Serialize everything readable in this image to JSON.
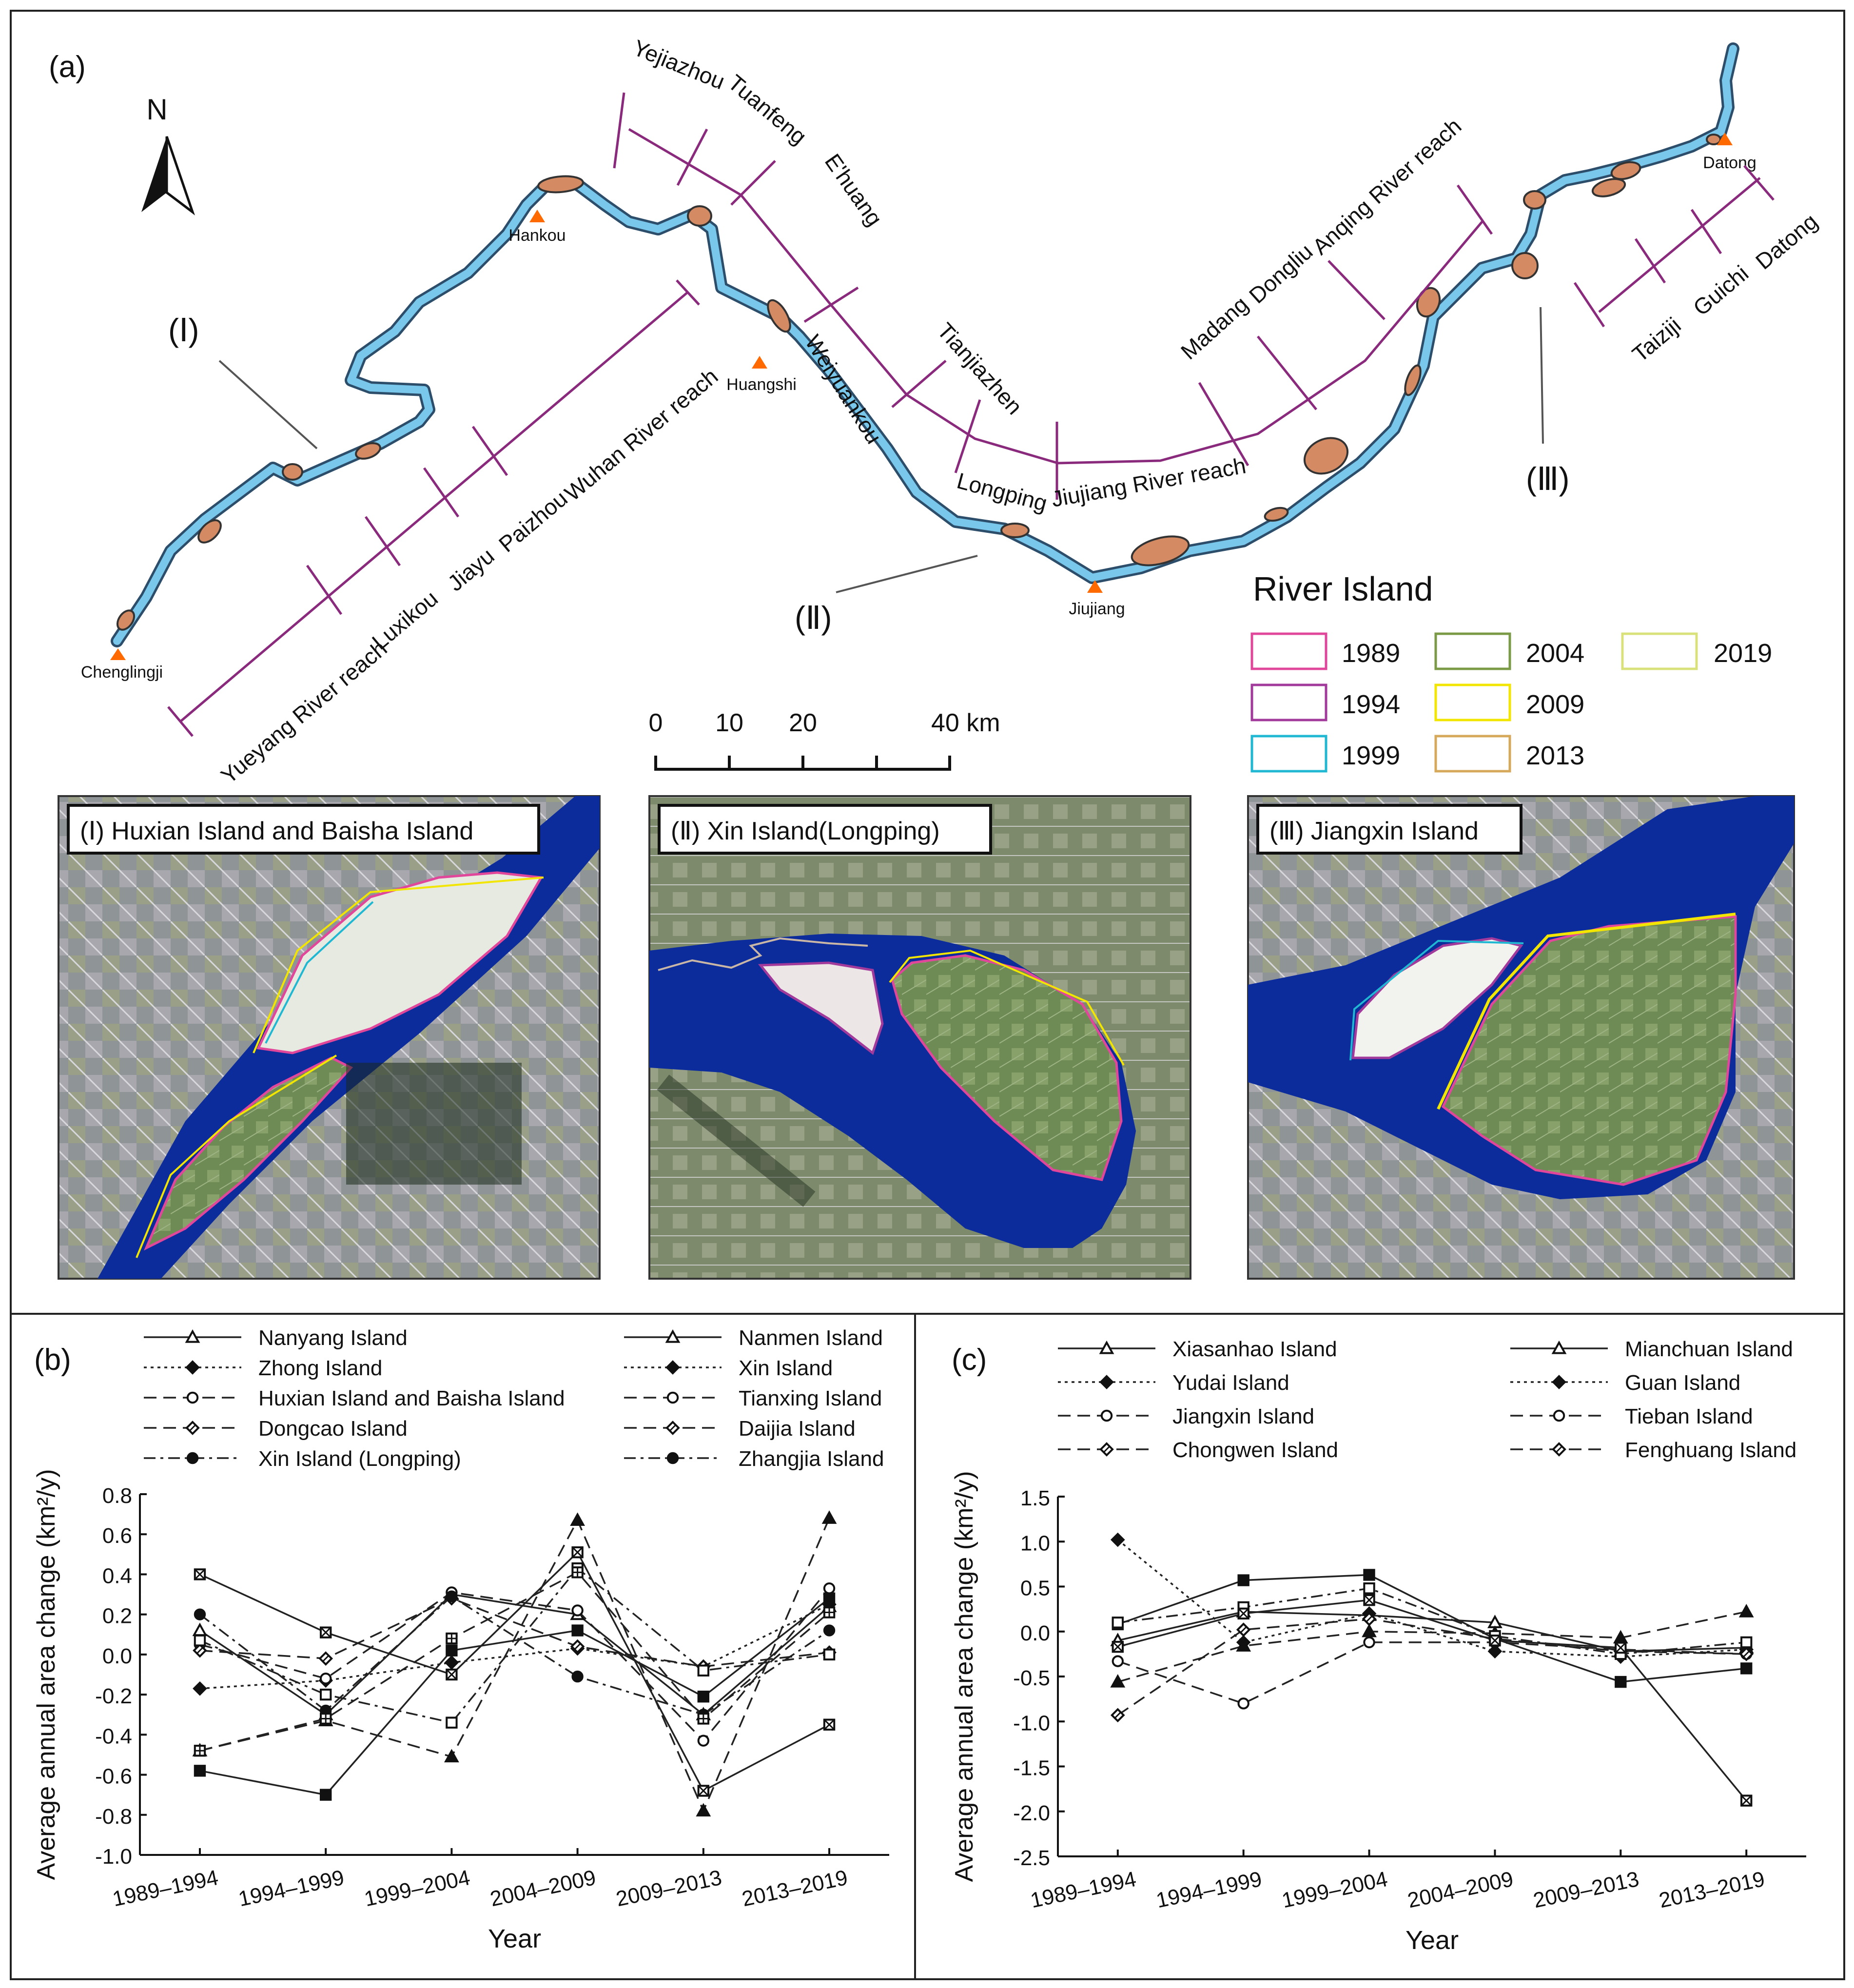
{
  "panel_a": {
    "label": "(a)",
    "north": "N",
    "cities": [
      "Chenglingji",
      "Hankou",
      "Huangshi",
      "Jiujiang",
      "Datong"
    ],
    "reaches": [
      "Yueyang River reach",
      "Luxikou",
      "Jiayu",
      "Paizhou",
      "Wuhan River reach",
      "Yejiazhou",
      "Tuanfeng",
      "E'huang",
      "Weiyuankou",
      "Tianjiazhen",
      "Longping",
      "Jiujiang River reach",
      "Madang",
      "Dongliu",
      "Anqing River reach",
      "Taiziji",
      "Guichi",
      "Datong"
    ],
    "markers": [
      "(Ⅰ)",
      "(Ⅱ)",
      "(Ⅲ)"
    ],
    "legend_title": "River Island",
    "legend": [
      {
        "year": "1989",
        "color": "#e0479a"
      },
      {
        "year": "1994",
        "color": "#a23a9c"
      },
      {
        "year": "1999",
        "color": "#1fb7d1"
      },
      {
        "year": "2004",
        "color": "#7a9a45"
      },
      {
        "year": "2009",
        "color": "#f2e600"
      },
      {
        "year": "2013",
        "color": "#d6a85a"
      },
      {
        "year": "2019",
        "color": "#d9e27a"
      }
    ],
    "scale_ticks": [
      "0",
      "10",
      "20",
      "40 km"
    ],
    "insets": [
      "(Ⅰ) Huxian Island and Baisha Island",
      "(Ⅱ) Xin Island(Longping)",
      "(Ⅲ) Jiangxin Island"
    ],
    "colors": {
      "river": "#79c7ea",
      "river_edge": "#2d4e6b",
      "island": "#d48a62",
      "reach_line": "#8a2a7c",
      "city": "#ff6a00",
      "water": "#0c2c9c"
    }
  },
  "chart_data": [
    {
      "panel": "(b)",
      "type": "line",
      "categories": [
        "1989–1994",
        "1994–1999",
        "1999–2004",
        "2004–2009",
        "2009–2013",
        "2013–2019"
      ],
      "xlabel": "Year",
      "ylabel": "Average annual area change (km²/y)",
      "ylim": [
        -1.0,
        0.8
      ],
      "yticks": [
        "0.8",
        "0.6",
        "0.4",
        "0.2",
        "0.0",
        "-0.2",
        "-0.4",
        "-0.6",
        "-0.8",
        "-1.0"
      ],
      "legend_items": [
        {
          "name": "Nanyang Island",
          "marker": "tri-open",
          "dash": "solid"
        },
        {
          "name": "Zhong Island",
          "marker": "diamond-filled",
          "dash": "dotted"
        },
        {
          "name": "Huxian Island and Baisha Island",
          "marker": "circle-open",
          "dash": "longdash"
        },
        {
          "name": "Dongcao Island",
          "marker": "diamond-open",
          "dash": "longdash"
        },
        {
          "name": "Xin Island (Longping)",
          "marker": "circle-filled",
          "dash": "dashdot"
        },
        {
          "name": "Nanmen Island",
          "marker": "tri-open",
          "dash": "solid"
        },
        {
          "name": "Xin Island",
          "marker": "diamond-filled",
          "dash": "dotted"
        },
        {
          "name": "Tianxing Island",
          "marker": "circle-open",
          "dash": "longdash"
        },
        {
          "name": "Daijia Island",
          "marker": "diamond-open",
          "dash": "longdash"
        },
        {
          "name": "Zhangjia Island",
          "marker": "circle-filled",
          "dash": "dashdot"
        }
      ],
      "lines": [
        {
          "marker": "tri-open",
          "dash": "solid",
          "values": [
            0.12,
            -0.3,
            0.3,
            0.2,
            -0.3,
            0.24
          ]
        },
        {
          "marker": "diamond-filled",
          "dash": "dotted",
          "values": [
            -0.17,
            -0.13,
            -0.04,
            0.03,
            -0.06,
            0.25
          ]
        },
        {
          "marker": "circle-open",
          "dash": "longdash",
          "values": [
            0.05,
            -0.12,
            0.31,
            0.22,
            -0.43,
            0.33
          ]
        },
        {
          "marker": "diamond-open",
          "dash": "longdash",
          "values": [
            0.02,
            -0.02,
            0.28,
            0.04,
            -0.06,
            0.01
          ]
        },
        {
          "marker": "circle-filled",
          "dash": "dashdot",
          "values": [
            0.2,
            -0.28,
            0.29,
            -0.11,
            -0.3,
            0.12
          ]
        },
        {
          "marker": "tri-filled",
          "dash": "longdash",
          "values": [
            -0.48,
            -0.33,
            -0.51,
            0.67,
            -0.78,
            0.68
          ]
        },
        {
          "marker": "square-cross",
          "dash": "solid",
          "values": [
            0.4,
            0.11,
            -0.1,
            0.51,
            -0.68,
            -0.35
          ]
        },
        {
          "marker": "square-filled",
          "dash": "solid",
          "values": [
            -0.58,
            -0.7,
            0.02,
            0.12,
            -0.21,
            0.28
          ]
        },
        {
          "marker": "square-open",
          "dash": "dashdot",
          "values": [
            0.07,
            -0.2,
            -0.34,
            0.43,
            -0.08,
            0.0
          ]
        },
        {
          "marker": "square-plus",
          "dash": "longdash",
          "values": [
            -0.48,
            -0.32,
            0.08,
            0.41,
            -0.32,
            0.21
          ]
        }
      ]
    },
    {
      "panel": "(c)",
      "type": "line",
      "categories": [
        "1989–1994",
        "1994–1999",
        "1999–2004",
        "2004–2009",
        "2009–2013",
        "2013–2019"
      ],
      "xlabel": "Year",
      "ylabel": "Average annual area change (km²/y)",
      "ylim": [
        -2.5,
        1.5
      ],
      "yticks": [
        "1.5",
        "1.0",
        "0.5",
        "0.0",
        "-0.5",
        "-1.0",
        "-1.5",
        "-2.0",
        "-2.5"
      ],
      "legend_items": [
        {
          "name": "Xiasanhao Island",
          "marker": "tri-open",
          "dash": "solid"
        },
        {
          "name": "Yudai Island",
          "marker": "diamond-filled",
          "dash": "dotted"
        },
        {
          "name": "Jiangxin Island",
          "marker": "circle-open",
          "dash": "longdash"
        },
        {
          "name": "Chongwen Island",
          "marker": "diamond-open",
          "dash": "longdash"
        },
        {
          "name": "Mianchuan Island",
          "marker": "tri-open",
          "dash": "solid"
        },
        {
          "name": "Guan Island",
          "marker": "diamond-filled",
          "dash": "dotted"
        },
        {
          "name": "Tieban Island",
          "marker": "circle-open",
          "dash": "longdash"
        },
        {
          "name": "Fenghuang Island",
          "marker": "diamond-open",
          "dash": "longdash"
        }
      ],
      "lines": [
        {
          "marker": "tri-open",
          "dash": "solid",
          "values": [
            -0.1,
            0.22,
            0.18,
            0.1,
            -0.22,
            -0.18
          ]
        },
        {
          "marker": "diamond-filled",
          "dash": "dotted",
          "values": [
            1.02,
            -0.12,
            0.2,
            -0.22,
            -0.28,
            -0.2
          ]
        },
        {
          "marker": "circle-open",
          "dash": "longdash",
          "values": [
            -0.33,
            -0.8,
            -0.12,
            -0.12,
            -0.2,
            -0.25
          ]
        },
        {
          "marker": "diamond-open",
          "dash": "longdash",
          "values": [
            -0.93,
            0.02,
            0.14,
            -0.08,
            -0.22,
            -0.25
          ]
        },
        {
          "marker": "tri-filled",
          "dash": "longdash",
          "values": [
            -0.56,
            -0.16,
            0.0,
            -0.02,
            -0.07,
            0.22
          ]
        },
        {
          "marker": "square-filled",
          "dash": "solid",
          "values": [
            0.08,
            0.57,
            0.63,
            -0.08,
            -0.56,
            -0.41
          ]
        },
        {
          "marker": "square-open",
          "dash": "dashdot",
          "values": [
            0.1,
            0.27,
            0.48,
            -0.05,
            -0.25,
            -0.12
          ]
        },
        {
          "marker": "square-cross",
          "dash": "solid",
          "values": [
            -0.17,
            0.2,
            0.35,
            -0.1,
            -0.18,
            -1.88
          ]
        }
      ]
    }
  ]
}
